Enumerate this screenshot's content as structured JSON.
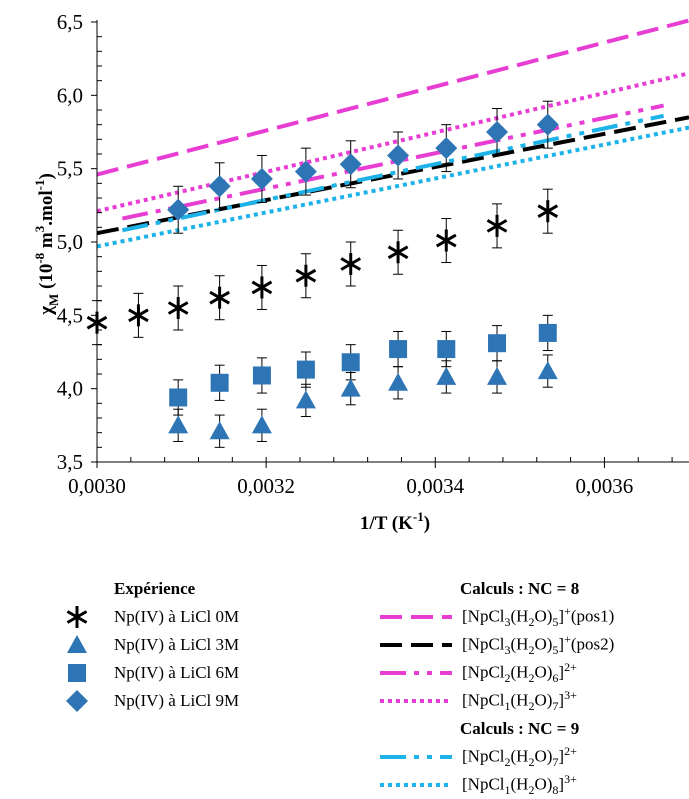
{
  "chart_data": {
    "type": "scatter",
    "title": "",
    "xlabel": "1/T (K⁻¹)",
    "ylabel": "χM (10⁻⁸ m³.mol⁻¹)",
    "xlim": [
      0.003,
      0.0037
    ],
    "ylim": [
      3.5,
      6.5
    ],
    "x_ticks": [
      "0,0030",
      "0,0032",
      "0,0034",
      "0,0036"
    ],
    "x_tick_values": [
      0.003,
      0.0032,
      0.0034,
      0.0036
    ],
    "y_ticks": [
      "3,5",
      "4,0",
      "4,5",
      "5,0",
      "5,5",
      "6,0",
      "6,5"
    ],
    "y_tick_values": [
      3.5,
      4.0,
      4.5,
      5.0,
      5.5,
      6.0,
      6.5
    ],
    "grid": false,
    "legend_position": "bottom",
    "experiment_heading": "Expérience",
    "experiments": [
      {
        "name": "Np(IV) à LiCl 0M",
        "marker": "asterisk",
        "color": "#000000",
        "x": [
          0.003,
          0.003049,
          0.003096,
          0.003145,
          0.003195,
          0.003247,
          0.0033,
          0.003356,
          0.003413,
          0.003473,
          0.003533
        ],
        "y": [
          4.45,
          4.5,
          4.55,
          4.62,
          4.69,
          4.77,
          4.85,
          4.93,
          5.01,
          5.11,
          5.21
        ],
        "err": 0.15
      },
      {
        "name": "Np(IV) à LiCl 3M",
        "marker": "triangle",
        "color": "#2E75B6",
        "x": [
          0.003096,
          0.003145,
          0.003195,
          0.003247,
          0.0033,
          0.003356,
          0.003413,
          0.003473,
          0.003533
        ],
        "y": [
          3.75,
          3.71,
          3.75,
          3.92,
          4.0,
          4.04,
          4.08,
          4.08,
          4.12
        ],
        "err": 0.11
      },
      {
        "name": "Np(IV) à LiCl 6M",
        "marker": "square",
        "color": "#2E75B6",
        "x": [
          0.003096,
          0.003145,
          0.003195,
          0.003247,
          0.0033,
          0.003356,
          0.003413,
          0.003473,
          0.003533
        ],
        "y": [
          3.94,
          4.04,
          4.09,
          4.13,
          4.18,
          4.27,
          4.27,
          4.31,
          4.38
        ],
        "err": 0.12
      },
      {
        "name": "Np(IV) à LiCl 9M",
        "marker": "diamond",
        "color": "#2E75B6",
        "x": [
          0.003096,
          0.003145,
          0.003195,
          0.003247,
          0.0033,
          0.003356,
          0.003413,
          0.003473,
          0.003533
        ],
        "y": [
          5.22,
          5.38,
          5.43,
          5.48,
          5.53,
          5.59,
          5.64,
          5.75,
          5.8
        ],
        "err": 0.16
      }
    ],
    "calc_groups": [
      {
        "heading": "Calculs : NC = 8",
        "series": [
          {
            "name_base": "[NpCl",
            "sub1": "3",
            "mid": "(H",
            "sub2": "2",
            "mid2": "O)",
            "sub3": "5",
            "tail": "]",
            "sup": "+",
            "suffix": "(pos1)",
            "style": "dash",
            "color": "#E83DD3",
            "x": [
              0.003,
              0.0037
            ],
            "y": [
              5.46,
              6.51
            ]
          },
          {
            "name_base": "[NpCl",
            "sub1": "3",
            "mid": "(H",
            "sub2": "2",
            "mid2": "O)",
            "sub3": "5",
            "tail": "]",
            "sup": "+",
            "suffix": "(pos2)",
            "style": "dash",
            "color": "#000000",
            "x": [
              0.003,
              0.0037
            ],
            "y": [
              5.06,
              5.85
            ]
          },
          {
            "name_base": "[NpCl",
            "sub1": "2",
            "mid": "(H",
            "sub2": "2",
            "mid2": "O)",
            "sub3": "6",
            "tail": "]",
            "sup": "2+",
            "suffix": "",
            "style": "longdashdotdot",
            "color": "#E83DD3",
            "x": [
              0.00303,
              0.00367
            ],
            "y": [
              5.16,
              5.93
            ]
          },
          {
            "name_base": "[NpCl",
            "sub1": "1",
            "mid": "(H",
            "sub2": "2",
            "mid2": "O)",
            "sub3": "7",
            "tail": "]",
            "sup": "3+",
            "suffix": "",
            "style": "dot",
            "color": "#E83DD3",
            "x": [
              0.003,
              0.0037
            ],
            "y": [
              5.21,
              6.15
            ]
          }
        ]
      },
      {
        "heading": "Calculs : NC = 9",
        "series": [
          {
            "name_base": "[NpCl",
            "sub1": "2",
            "mid": "(H",
            "sub2": "2",
            "mid2": "O)",
            "sub3": "7",
            "tail": "]",
            "sup": "2+",
            "suffix": "",
            "style": "longdashdotdot",
            "color": "#1EB3E8",
            "x": [
              0.00303,
              0.00367
            ],
            "y": [
              5.08,
              5.86
            ]
          },
          {
            "name_base": "[NpCl",
            "sub1": "1",
            "mid": "(H",
            "sub2": "2",
            "mid2": "O)",
            "sub3": "8",
            "tail": "]",
            "sup": "3+",
            "suffix": "",
            "style": "dot",
            "color": "#1EB3E8",
            "x": [
              0.003,
              0.0037
            ],
            "y": [
              4.97,
              5.78
            ]
          }
        ]
      }
    ]
  }
}
